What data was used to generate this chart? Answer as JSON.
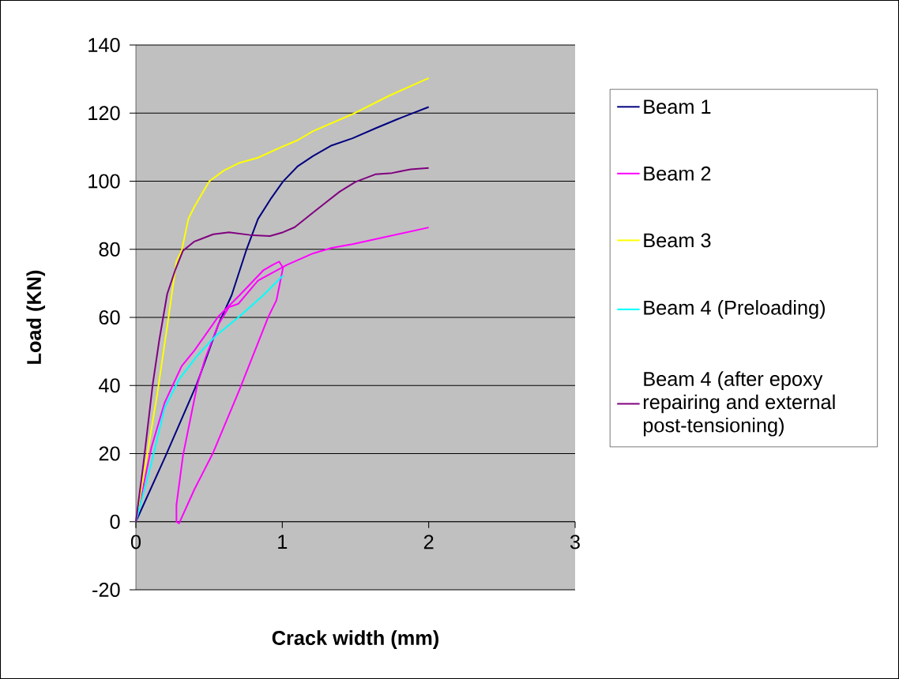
{
  "chart_data": {
    "type": "line",
    "xlabel": "Crack width (mm)",
    "ylabel": "Load (KN)",
    "xlim": [
      0,
      3
    ],
    "ylim": [
      -20,
      140
    ],
    "xticks": [
      0,
      1,
      2,
      3
    ],
    "yticks": [
      -20,
      0,
      20,
      40,
      60,
      80,
      100,
      120,
      140
    ],
    "grid": "y",
    "legend": "right",
    "series": [
      {
        "name": "Beam 1",
        "color": "#000080",
        "x": [
          0,
          0.205,
          0.415,
          0.455,
          0.564,
          0.654,
          0.753,
          0.834,
          0.924,
          1.005,
          1.103,
          1.21,
          1.337,
          1.48,
          1.64,
          1.786,
          2.0
        ],
        "values": [
          0,
          19.5,
          40.3,
          45,
          58,
          66.5,
          79.6,
          88.9,
          95,
          99.9,
          104.3,
          107.4,
          110.5,
          112.6,
          115.6,
          118.2,
          121.8
        ]
      },
      {
        "name": "Beam 2",
        "color": "#ff00ff",
        "x": [
          0,
          0.106,
          0.196,
          0.313,
          0.4,
          0.564,
          0.708,
          0.87,
          0.933,
          0.978,
          1.005,
          0.96,
          0.906,
          0.708,
          0.528,
          0.4,
          0.295,
          0.277,
          0.277,
          0.322,
          0.42,
          0.474,
          0.564,
          0.636,
          0.7,
          0.834,
          1.03,
          1.21,
          1.337,
          1.48,
          2.0
        ],
        "values": [
          0,
          21.8,
          34.9,
          45.7,
          50.3,
          60.3,
          66.5,
          73.8,
          75.4,
          76.4,
          74.6,
          65,
          60.3,
          38.8,
          20.3,
          9.5,
          -0.5,
          0,
          4.9,
          19.5,
          40.3,
          48,
          58,
          63,
          64,
          70.8,
          75.4,
          78.8,
          80.4,
          81.5,
          86.4
        ]
      },
      {
        "name": "Beam 3",
        "color": "#ffff00",
        "x": [
          0,
          0.061,
          0.145,
          0.224,
          0.277,
          0.313,
          0.358,
          0.402,
          0.502,
          0.6,
          0.708,
          0.834,
          0.977,
          1.103,
          1.21,
          1.48,
          1.73,
          2.0
        ],
        "values": [
          0,
          15.6,
          37.2,
          60.3,
          76.5,
          79.6,
          88.9,
          92.7,
          100,
          103.1,
          105.4,
          106.9,
          109.7,
          112,
          114.7,
          119.7,
          125.1,
          130.3
        ]
      },
      {
        "name": "Beam 4 (Preloading)",
        "color": "#00ffff",
        "x": [
          0,
          0.106,
          0.196,
          0.295,
          0.42,
          0.546,
          0.708,
          0.87,
          1.005
        ],
        "values": [
          0,
          17.2,
          33.4,
          41.8,
          48.8,
          54.6,
          60.3,
          66.5,
          72.3
        ]
      },
      {
        "name": "Beam 4 (after epoxy repairing and external post-tensioning)",
        "color": "#800080",
        "x": [
          0,
          0.052,
          0.115,
          0.16,
          0.214,
          0.268,
          0.322,
          0.4,
          0.528,
          0.636,
          0.78,
          0.915,
          1.005,
          1.085,
          1.21,
          1.391,
          1.5,
          1.635,
          1.75,
          1.876,
          2.0
        ],
        "values": [
          0,
          17.2,
          40.3,
          53.4,
          66.9,
          73.8,
          79.6,
          82.3,
          84.4,
          85,
          84.2,
          83.9,
          85,
          86.5,
          90.8,
          96.9,
          99.8,
          102,
          102.4,
          103.5,
          103.9
        ]
      }
    ]
  }
}
